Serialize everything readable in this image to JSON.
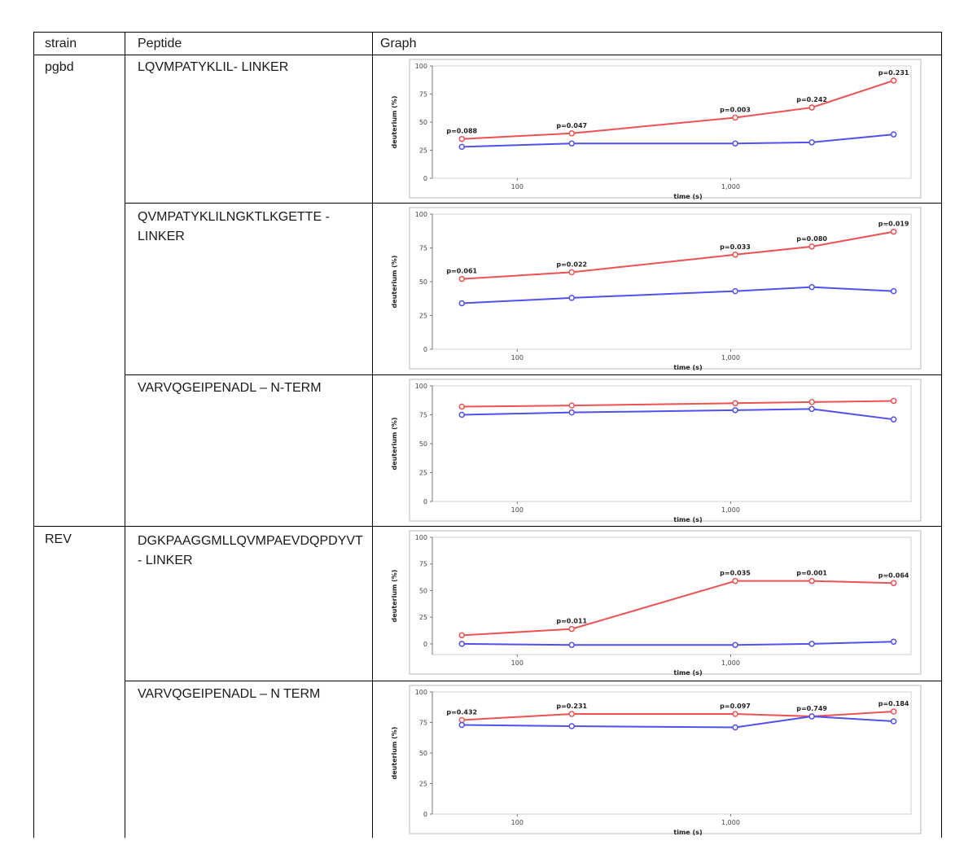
{
  "table": {
    "headers": {
      "strain": "strain",
      "peptide": "Peptide",
      "graph": "Graph"
    },
    "rows": [
      {
        "strain": "pgbd",
        "peptide": "LQVMPATYKLIL- LINKER"
      },
      {
        "strain": "",
        "peptide": "QVMPATYKLILNGKTLKGETTE - LINKER"
      },
      {
        "strain": "",
        "peptide": "VARVQGEIPENADL – N-TERM"
      },
      {
        "strain": "REV",
        "peptide": "DGKPAAGGMLLQVMPAEVDQPDYVT - LINKER"
      },
      {
        "strain": "",
        "peptide": "VARVQGEIPENADL – N TERM"
      }
    ]
  },
  "chart_data": [
    {
      "type": "line",
      "xlabel": "time (s)",
      "ylabel": "deuterium (%)",
      "xscale": "log",
      "xlim": [
        40,
        7000
      ],
      "ylim": [
        0,
        100
      ],
      "xticks": [
        100,
        1000
      ],
      "xtick_labels": [
        "100",
        "1,000"
      ],
      "yticks": [
        0,
        25,
        50,
        75,
        100
      ],
      "ytick_labels": [
        "0",
        "25",
        "50",
        "75",
        "100"
      ],
      "x": [
        55,
        180,
        1050,
        2400,
        5800
      ],
      "series": [
        {
          "name": "red",
          "color": "#f05050",
          "values": [
            35,
            40,
            54,
            63,
            87
          ]
        },
        {
          "name": "blue",
          "color": "#5050f0",
          "values": [
            28,
            31,
            31,
            32,
            39
          ]
        }
      ],
      "pvalues": [
        "p=0.088",
        "p=0.047",
        "p=0.003",
        "p=0.242",
        "p=0.231"
      ]
    },
    {
      "type": "line",
      "xlabel": "time (s)",
      "ylabel": "deuterium (%)",
      "xscale": "log",
      "xlim": [
        40,
        7000
      ],
      "ylim": [
        0,
        100
      ],
      "xticks": [
        100,
        1000
      ],
      "xtick_labels": [
        "100",
        "1,000"
      ],
      "yticks": [
        0,
        25,
        50,
        75,
        100
      ],
      "ytick_labels": [
        "0",
        "25",
        "50",
        "75",
        "100"
      ],
      "x": [
        55,
        180,
        1050,
        2400,
        5800
      ],
      "series": [
        {
          "name": "red",
          "color": "#f05050",
          "values": [
            52,
            57,
            70,
            76,
            87
          ]
        },
        {
          "name": "blue",
          "color": "#5050f0",
          "values": [
            34,
            38,
            43,
            46,
            43
          ]
        }
      ],
      "pvalues": [
        "p=0.061",
        "p=0.022",
        "p=0.033",
        "p=0.080",
        "p=0.019"
      ]
    },
    {
      "type": "line",
      "xlabel": "time (s)",
      "ylabel": "deuterium (%)",
      "xscale": "log",
      "xlim": [
        40,
        7000
      ],
      "ylim": [
        0,
        100
      ],
      "xticks": [
        100,
        1000
      ],
      "xtick_labels": [
        "100",
        "1,000"
      ],
      "yticks": [
        0,
        25,
        50,
        75,
        100
      ],
      "ytick_labels": [
        "0",
        "25",
        "50",
        "75",
        "100"
      ],
      "x": [
        55,
        180,
        1050,
        2400,
        5800
      ],
      "series": [
        {
          "name": "red",
          "color": "#f05050",
          "values": [
            82,
            83,
            85,
            86,
            87
          ]
        },
        {
          "name": "blue",
          "color": "#5050f0",
          "values": [
            75,
            77,
            79,
            80,
            71
          ]
        }
      ],
      "pvalues": []
    },
    {
      "type": "line",
      "xlabel": "time (s)",
      "ylabel": "deuterium (%)",
      "xscale": "log",
      "xlim": [
        40,
        7000
      ],
      "ylim": [
        -10,
        100
      ],
      "xticks": [
        100,
        1000
      ],
      "xtick_labels": [
        "100",
        "1,000"
      ],
      "yticks": [
        0,
        25,
        50,
        75,
        100
      ],
      "ytick_labels": [
        "0",
        "25",
        "50",
        "75",
        "100"
      ],
      "x": [
        55,
        180,
        1050,
        2400,
        5800
      ],
      "series": [
        {
          "name": "red",
          "color": "#f05050",
          "values": [
            8,
            14,
            59,
            59,
            57
          ]
        },
        {
          "name": "blue",
          "color": "#5050f0",
          "values": [
            0,
            -1,
            -1,
            0,
            2
          ]
        }
      ],
      "pvalues": [
        "",
        "p=0.011",
        "p=0.035",
        "p=0.001",
        "p=0.064"
      ]
    },
    {
      "type": "line",
      "xlabel": "time (s)",
      "ylabel": "deuterium (%)",
      "xscale": "log",
      "xlim": [
        40,
        7000
      ],
      "ylim": [
        0,
        100
      ],
      "xticks": [
        100,
        1000
      ],
      "xtick_labels": [
        "100",
        "1,000"
      ],
      "yticks": [
        0,
        25,
        50,
        75,
        100
      ],
      "ytick_labels": [
        "0",
        "25",
        "50",
        "75",
        "100"
      ],
      "x": [
        55,
        180,
        1050,
        2400,
        5800
      ],
      "series": [
        {
          "name": "red",
          "color": "#f05050",
          "values": [
            77,
            82,
            82,
            80,
            84
          ]
        },
        {
          "name": "blue",
          "color": "#5050f0",
          "values": [
            73,
            72,
            71,
            80,
            76
          ]
        }
      ],
      "pvalues": [
        "p=0.432",
        "p=0.231",
        "p=0.097",
        "p=0.749",
        "p=0.184"
      ]
    }
  ]
}
